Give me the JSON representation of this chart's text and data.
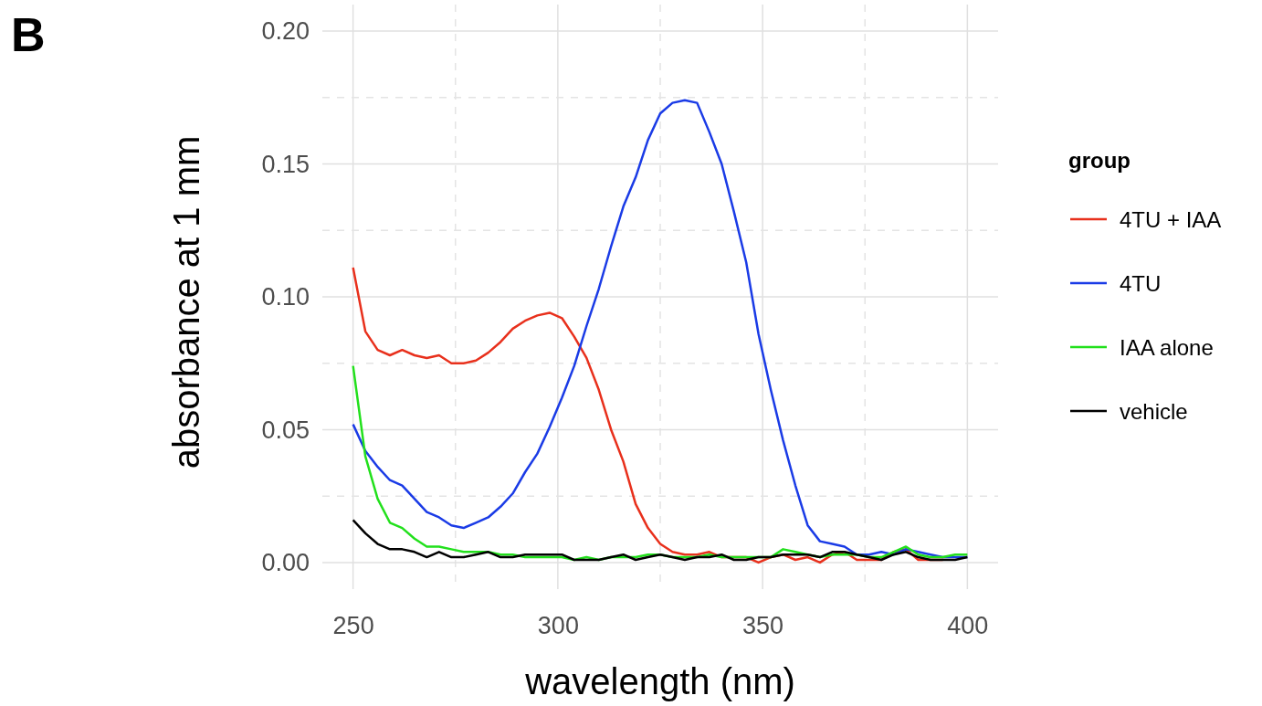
{
  "chart_data": {
    "type": "line",
    "xlabel": "wavelength (nm)",
    "ylabel": "absorbance at 1 mm",
    "legend_title": "group",
    "annotations": [
      "B"
    ],
    "x": [
      250,
      253,
      256,
      259,
      262,
      265,
      268,
      271,
      274,
      277,
      280,
      283,
      286,
      289,
      292,
      295,
      298,
      301,
      304,
      307,
      310,
      313,
      316,
      319,
      322,
      325,
      328,
      331,
      334,
      337,
      340,
      343,
      346,
      349,
      352,
      355,
      358,
      361,
      364,
      367,
      370,
      373,
      376,
      379,
      382,
      385,
      388,
      391,
      394,
      397,
      400
    ],
    "xlim": [
      242.5,
      407.5
    ],
    "xticks": [
      250,
      300,
      350,
      400
    ],
    "ylim": [
      -0.01,
      0.21
    ],
    "yticks": [
      {
        "value": 0,
        "label": "0.00"
      },
      {
        "value": 0.05,
        "label": "0.05"
      },
      {
        "value": 0.1,
        "label": "0.10"
      },
      {
        "value": 0.15,
        "label": "0.15"
      },
      {
        "value": 0.2,
        "label": "0.20"
      }
    ],
    "grid": true,
    "legend": "right",
    "line_style": "solid",
    "marker": "none",
    "series": [
      {
        "name": "4TU + IAA",
        "color": "#e8301c",
        "values": [
          0.111,
          0.087,
          0.08,
          0.078,
          0.08,
          0.078,
          0.077,
          0.078,
          0.075,
          0.075,
          0.076,
          0.079,
          0.083,
          0.088,
          0.091,
          0.093,
          0.094,
          0.092,
          0.085,
          0.077,
          0.065,
          0.05,
          0.038,
          0.022,
          0.013,
          0.007,
          0.004,
          0.003,
          0.003,
          0.004,
          0.002,
          0.002,
          0.002,
          0.0,
          0.002,
          0.003,
          0.001,
          0.002,
          0.0,
          0.003,
          0.004,
          0.001,
          0.001,
          0.001,
          0.004,
          0.005,
          0.001,
          0.001,
          0.001,
          null,
          null
        ]
      },
      {
        "name": "4TU",
        "color": "#1a3be6",
        "values": [
          0.052,
          0.042,
          0.036,
          0.031,
          0.029,
          0.024,
          0.019,
          0.017,
          0.014,
          0.013,
          0.015,
          0.017,
          0.021,
          0.026,
          0.034,
          0.041,
          0.051,
          0.062,
          0.074,
          0.089,
          0.103,
          0.119,
          0.134,
          0.145,
          0.159,
          0.169,
          0.173,
          0.174,
          0.173,
          0.162,
          0.15,
          0.132,
          0.113,
          0.086,
          0.065,
          0.046,
          0.029,
          0.014,
          0.008,
          0.007,
          0.006,
          0.003,
          0.003,
          0.004,
          0.003,
          0.005,
          0.004,
          0.003,
          0.002,
          0.002,
          0.002
        ]
      },
      {
        "name": "IAA alone",
        "color": "#22e01c",
        "values": [
          0.074,
          0.04,
          0.024,
          0.015,
          0.013,
          0.009,
          0.006,
          0.006,
          0.005,
          0.004,
          0.004,
          0.004,
          0.003,
          0.003,
          0.002,
          0.002,
          0.002,
          0.002,
          0.001,
          0.002,
          0.001,
          0.002,
          0.002,
          0.002,
          0.003,
          0.003,
          0.002,
          0.002,
          0.002,
          0.003,
          0.002,
          0.002,
          0.002,
          0.002,
          0.002,
          0.005,
          0.004,
          0.003,
          0.002,
          0.003,
          0.003,
          0.003,
          0.002,
          0.002,
          0.004,
          0.006,
          0.003,
          0.002,
          0.002,
          0.003,
          0.003
        ]
      },
      {
        "name": "vehicle",
        "color": "#000000",
        "values": [
          0.016,
          0.011,
          0.007,
          0.005,
          0.005,
          0.004,
          0.002,
          0.004,
          0.002,
          0.002,
          0.003,
          0.004,
          0.002,
          0.002,
          0.003,
          0.003,
          0.003,
          0.003,
          0.001,
          0.001,
          0.001,
          0.002,
          0.003,
          0.001,
          0.002,
          0.003,
          0.002,
          0.001,
          0.002,
          0.002,
          0.003,
          0.001,
          0.001,
          0.002,
          0.002,
          0.003,
          0.003,
          0.003,
          0.002,
          0.004,
          0.004,
          0.003,
          0.002,
          0.001,
          0.003,
          0.004,
          0.002,
          0.001,
          0.001,
          0.001,
          0.002
        ]
      }
    ]
  }
}
